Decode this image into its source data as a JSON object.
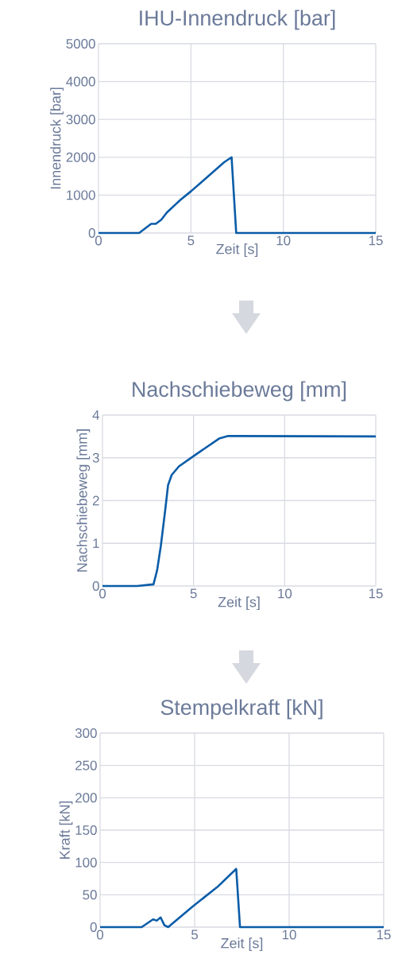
{
  "chart_data": [
    {
      "type": "line",
      "title": "IHU-Innendruck [bar]",
      "xlabel": "Zeit [s]",
      "ylabel": "Innendruck [bar]",
      "color": "#0a5ca8",
      "grid": true,
      "x": [
        0,
        2.2,
        2.85,
        3.1,
        3.4,
        3.7,
        4.4,
        5.0,
        6.8,
        7.2,
        7.45,
        15
      ],
      "values": [
        0,
        0,
        240,
        240,
        350,
        540,
        860,
        1100,
        1870,
        2000,
        0,
        0
      ],
      "xlim": [
        0,
        15
      ],
      "ylim": [
        0,
        5000
      ],
      "xticks": [
        0,
        5,
        10,
        15
      ],
      "yticks": [
        0,
        1000,
        2000,
        3000,
        4000,
        5000
      ]
    },
    {
      "type": "line",
      "title": "Nachschiebeweg [mm]",
      "xlabel": "Zeit [s]",
      "ylabel": "Nachschiebeweg [mm]",
      "color": "#0a5ca8",
      "grid": true,
      "x": [
        0,
        1.9,
        2.8,
        3.0,
        3.2,
        3.45,
        3.6,
        3.8,
        4.2,
        5.0,
        6.4,
        6.9,
        7.3,
        15
      ],
      "values": [
        0,
        0,
        0.04,
        0.37,
        0.93,
        1.8,
        2.36,
        2.6,
        2.8,
        3.04,
        3.45,
        3.51,
        3.51,
        3.5
      ],
      "xlim": [
        0,
        15
      ],
      "ylim": [
        0,
        4
      ],
      "xticks": [
        0,
        5,
        10,
        15
      ],
      "yticks": [
        0,
        1,
        2,
        3,
        4
      ]
    },
    {
      "type": "line",
      "title": "Stempelkraft [kN]",
      "xlabel": "Zeit [s]",
      "ylabel": "Kraft [kN]",
      "color": "#0a5ca8",
      "grid": true,
      "x": [
        0,
        2.2,
        2.8,
        3.0,
        3.2,
        3.4,
        3.6,
        4.9,
        6.2,
        7.2,
        7.4,
        15
      ],
      "values": [
        0,
        0,
        12,
        10,
        15,
        3,
        0,
        32,
        62,
        90,
        0,
        0
      ],
      "xlim": [
        0,
        15
      ],
      "ylim": [
        0,
        300
      ],
      "xticks": [
        0,
        5,
        10,
        15
      ],
      "yticks": [
        0,
        50,
        100,
        150,
        200,
        250,
        300
      ]
    }
  ]
}
